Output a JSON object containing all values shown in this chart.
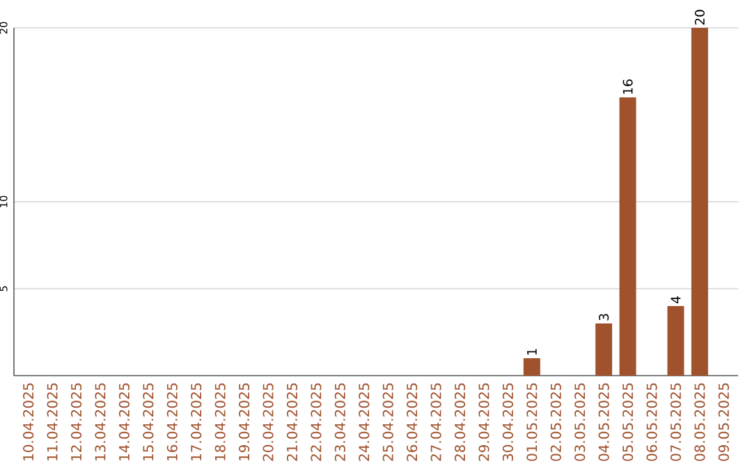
{
  "chart_data": {
    "type": "bar",
    "categories": [
      "10.04.2025",
      "11.04.2025",
      "12.04.2025",
      "13.04.2025",
      "14.04.2025",
      "15.04.2025",
      "16.04.2025",
      "17.04.2025",
      "18.04.2025",
      "19.04.2025",
      "20.04.2025",
      "21.04.2025",
      "22.04.2025",
      "23.04.2025",
      "24.04.2025",
      "25.04.2025",
      "26.04.2025",
      "27.04.2025",
      "28.04.2025",
      "29.04.2025",
      "30.04.2025",
      "01.05.2025",
      "02.05.2025",
      "03.05.2025",
      "04.05.2025",
      "05.05.2025",
      "06.05.2025",
      "07.05.2025",
      "08.05.2025",
      "09.05.2025"
    ],
    "values": [
      0,
      0,
      0,
      0,
      0,
      0,
      0,
      0,
      0,
      0,
      0,
      0,
      0,
      0,
      0,
      0,
      0,
      0,
      0,
      0,
      0,
      1,
      0,
      0,
      3,
      16,
      0,
      4,
      20,
      0
    ],
    "value_labels": [
      null,
      null,
      null,
      null,
      null,
      null,
      null,
      null,
      null,
      null,
      null,
      null,
      null,
      null,
      null,
      null,
      null,
      null,
      null,
      null,
      null,
      "1",
      null,
      null,
      "3",
      "16",
      null,
      "4",
      "20",
      null
    ],
    "color": "#a0522d",
    "ylim": [
      0,
      20
    ],
    "yticks": [
      5,
      10,
      20
    ],
    "grid": "y"
  }
}
